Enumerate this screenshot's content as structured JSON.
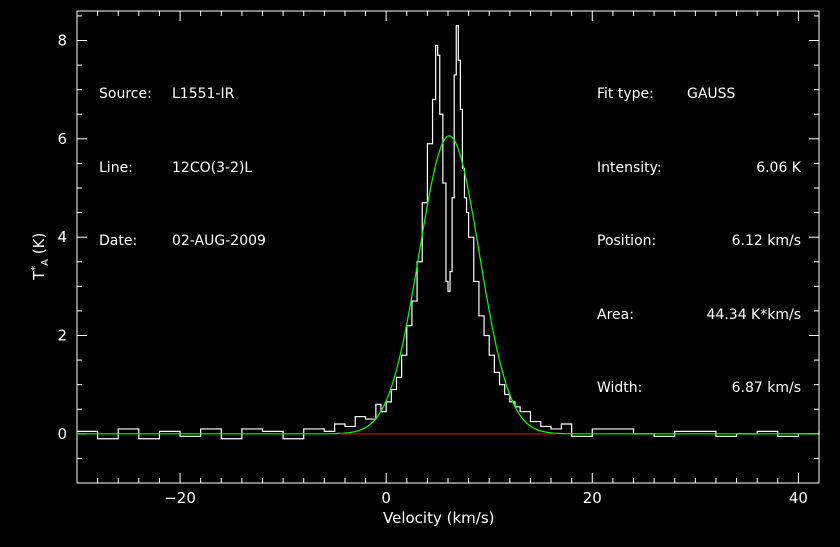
{
  "chart_data": {
    "type": "line",
    "xlabel": "Velocity (km/s)",
    "ylabel": "T",
    "ylabel_sup": "*",
    "ylabel_sub": "A",
    "ylabel_unit": "(K)",
    "xlim": [
      -30,
      42
    ],
    "ylim": [
      -1,
      8.6
    ],
    "xticks": [
      -20,
      0,
      20,
      40
    ],
    "yticks": [
      0,
      2,
      4,
      6,
      8
    ],
    "grid": false,
    "series": [
      {
        "color": "#ffffff",
        "style": "step",
        "x": [
          -30,
          -28,
          -26,
          -24,
          -22,
          -20,
          -18,
          -16,
          -14,
          -12,
          -10,
          -8,
          -6,
          -5,
          -4,
          -3,
          -2,
          -1,
          -0.5,
          0,
          0.5,
          1,
          1.5,
          2,
          2.5,
          3,
          3.5,
          4,
          4.5,
          4.8,
          5,
          5.2,
          5.5,
          5.8,
          6,
          6.2,
          6.4,
          6.6,
          6.8,
          7,
          7.2,
          7.4,
          7.6,
          7.8,
          8,
          8.5,
          9,
          9.5,
          10,
          10.5,
          11,
          11.5,
          12,
          12.5,
          13,
          14,
          15,
          16,
          17,
          18,
          20,
          22,
          24,
          26,
          28,
          30,
          32,
          34,
          36,
          38,
          40,
          42
        ],
        "y": [
          0.05,
          -0.1,
          0.1,
          -0.1,
          0.05,
          -0.05,
          0.1,
          -0.1,
          0.1,
          0.05,
          -0.1,
          0.1,
          0.05,
          0.2,
          0.15,
          0.35,
          0.3,
          0.6,
          0.45,
          0.65,
          0.9,
          1.15,
          1.6,
          2.2,
          2.7,
          3.5,
          4.7,
          5.9,
          6.8,
          7.9,
          7.7,
          6.5,
          5.1,
          3.1,
          2.9,
          3.3,
          4.8,
          7.3,
          8.3,
          7.6,
          6.6,
          5.4,
          4.8,
          4.5,
          4.0,
          3.1,
          2.4,
          2.0,
          1.6,
          1.25,
          1.0,
          0.8,
          0.65,
          0.55,
          0.45,
          0.25,
          0.15,
          0.1,
          0.2,
          -0.05,
          0.1,
          0.1,
          0.0,
          -0.05,
          0.05,
          0.05,
          -0.05,
          0.0,
          0.05,
          -0.05,
          0.0,
          0.05
        ]
      },
      {
        "color": "#00ff00",
        "style": "gaussian",
        "amplitude": 6.06,
        "center": 6.12,
        "fwhm": 6.87
      },
      {
        "color": "#ff0000",
        "style": "baseline",
        "x": [
          -4.5,
          16.5
        ],
        "y": [
          0,
          0
        ]
      }
    ]
  },
  "source": {
    "label": "Source:",
    "value": "L1551-IR"
  },
  "line": {
    "label": "Line:",
    "value": "12CO(3-2)L"
  },
  "date": {
    "label": "Date:",
    "value": "02-AUG-2009"
  },
  "fit": {
    "type_label": "Fit type:",
    "type_value": "GAUSS",
    "intensity_label": "Intensity:",
    "intensity_value": "6.06 K",
    "position_label": "Position:",
    "position_value": "6.12 km/s",
    "area_label": "Area:",
    "area_value": "44.34 K*km/s",
    "width_label": "Width:",
    "width_value": "6.87 km/s"
  }
}
